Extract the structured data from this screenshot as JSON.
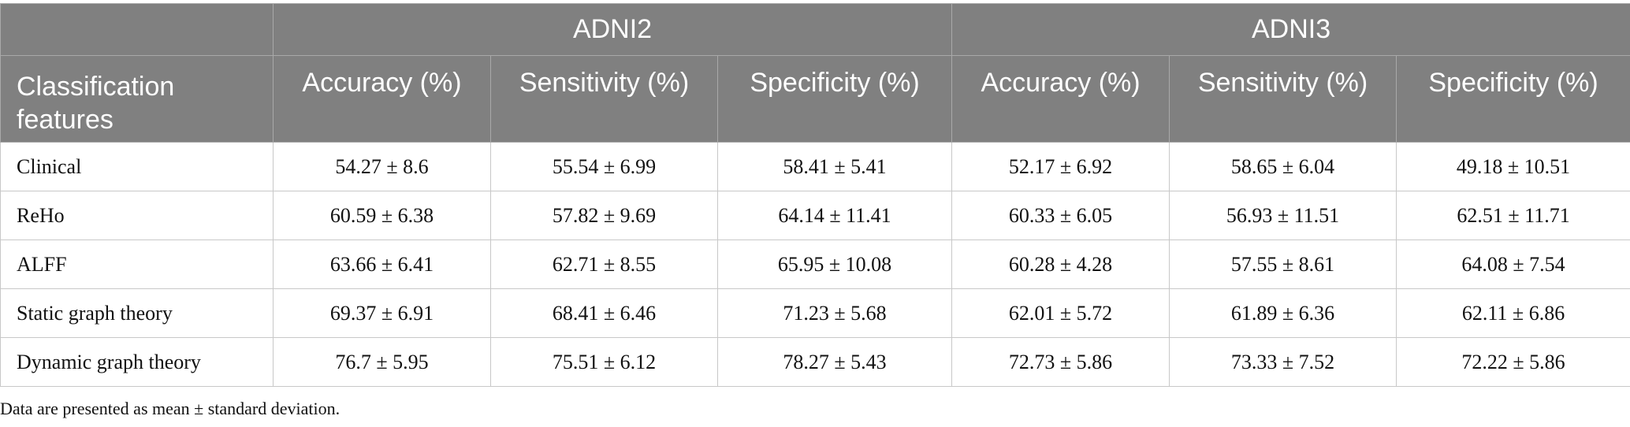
{
  "table": {
    "groups": [
      "ADNI2",
      "ADNI3"
    ],
    "feature_header": "Classification features",
    "metric_headers": [
      "Accuracy (%)",
      "Sensitivity (%)",
      "Specificity (%)",
      "Accuracy (%)",
      "Sensitivity (%)",
      "Specificity (%)"
    ],
    "rows": [
      {
        "feature": "Clinical",
        "values": [
          "54.27 ± 8.6",
          "55.54 ± 6.99",
          "58.41 ± 5.41",
          "52.17 ± 6.92",
          "58.65 ± 6.04",
          "49.18 ± 10.51"
        ]
      },
      {
        "feature": "ReHo",
        "values": [
          "60.59 ± 6.38",
          "57.82 ± 9.69",
          "64.14 ± 11.41",
          "60.33 ± 6.05",
          "56.93 ± 11.51",
          "62.51 ± 11.71"
        ]
      },
      {
        "feature": "ALFF",
        "values": [
          "63.66 ± 6.41",
          "62.71 ± 8.55",
          "65.95 ± 10.08",
          "60.28 ± 4.28",
          "57.55 ± 8.61",
          "64.08 ± 7.54"
        ]
      },
      {
        "feature": "Static graph theory",
        "values": [
          "69.37 ± 6.91",
          "68.41 ± 6.46",
          "71.23 ± 5.68",
          "62.01 ± 5.72",
          "61.89 ± 6.36",
          "62.11 ± 6.86"
        ]
      },
      {
        "feature": "Dynamic graph theory",
        "values": [
          "76.7 ± 5.95",
          "75.51 ± 6.12",
          "78.27 ± 5.43",
          "72.73 ± 5.86",
          "73.33 ± 7.52",
          "72.22 ± 5.86"
        ]
      }
    ]
  },
  "note": "Data are presented as mean ± standard deviation.",
  "colors": {
    "header_bg": "#808080",
    "header_text": "#ffffff",
    "border": "#c8c8c8"
  }
}
